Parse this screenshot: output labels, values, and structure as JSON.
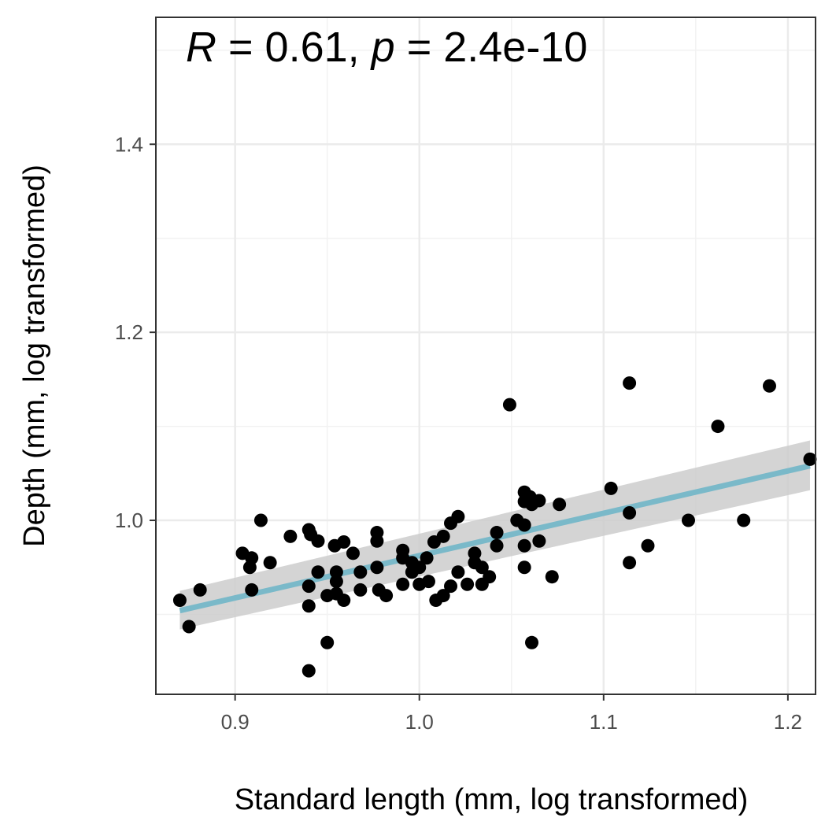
{
  "chart_data": {
    "type": "scatter",
    "xlabel": "Standard length (mm, log transformed)",
    "ylabel": "Depth (mm, log transformed)",
    "xlim": [
      0.857,
      1.215
    ],
    "ylim": [
      0.815,
      1.535
    ],
    "x_ticks": [
      0.9,
      1.0,
      1.1,
      1.2
    ],
    "x_tick_labels": [
      "0.9",
      "1.0",
      "1.1",
      "1.2"
    ],
    "y_ticks": [
      1.0,
      1.2,
      1.4
    ],
    "y_tick_labels": [
      "1.0",
      "1.2",
      "1.4"
    ],
    "grid": true,
    "annotation": {
      "r_symbol": "R",
      "r_text": " = 0.61, ",
      "p_symbol": "p",
      "p_text": " = 2.4e-10"
    },
    "point_color": "#000000",
    "fit_color": "#7ab9c9",
    "band_color": "#cccccc",
    "fit": {
      "x": [
        0.87,
        1.212
      ],
      "y": [
        0.904,
        1.058
      ],
      "ci_lower": [
        0.884,
        1.032
      ],
      "ci_upper": [
        0.925,
        1.085
      ]
    },
    "points": [
      {
        "x": 0.87,
        "y": 0.915
      },
      {
        "x": 0.875,
        "y": 0.887
      },
      {
        "x": 0.881,
        "y": 0.926
      },
      {
        "x": 0.904,
        "y": 0.965
      },
      {
        "x": 0.908,
        "y": 0.95
      },
      {
        "x": 0.909,
        "y": 0.96
      },
      {
        "x": 0.909,
        "y": 0.926
      },
      {
        "x": 0.914,
        "y": 1.0
      },
      {
        "x": 0.919,
        "y": 0.955
      },
      {
        "x": 0.93,
        "y": 0.983
      },
      {
        "x": 0.94,
        "y": 0.99
      },
      {
        "x": 0.941,
        "y": 0.985
      },
      {
        "x": 0.94,
        "y": 0.93
      },
      {
        "x": 0.94,
        "y": 0.909
      },
      {
        "x": 0.94,
        "y": 0.84
      },
      {
        "x": 0.945,
        "y": 0.945
      },
      {
        "x": 0.945,
        "y": 0.978
      },
      {
        "x": 0.95,
        "y": 0.87
      },
      {
        "x": 0.95,
        "y": 0.92
      },
      {
        "x": 0.954,
        "y": 0.973
      },
      {
        "x": 0.955,
        "y": 0.945
      },
      {
        "x": 0.955,
        "y": 0.935
      },
      {
        "x": 0.955,
        "y": 0.922
      },
      {
        "x": 0.959,
        "y": 0.977
      },
      {
        "x": 0.959,
        "y": 0.915
      },
      {
        "x": 0.964,
        "y": 0.965
      },
      {
        "x": 0.968,
        "y": 0.945
      },
      {
        "x": 0.968,
        "y": 0.926
      },
      {
        "x": 0.977,
        "y": 0.987
      },
      {
        "x": 0.977,
        "y": 0.978
      },
      {
        "x": 0.977,
        "y": 0.95
      },
      {
        "x": 0.978,
        "y": 0.926
      },
      {
        "x": 0.982,
        "y": 0.92
      },
      {
        "x": 0.991,
        "y": 0.968
      },
      {
        "x": 0.991,
        "y": 0.96
      },
      {
        "x": 0.991,
        "y": 0.932
      },
      {
        "x": 0.996,
        "y": 0.955
      },
      {
        "x": 0.996,
        "y": 0.945
      },
      {
        "x": 1.0,
        "y": 0.95
      },
      {
        "x": 1.0,
        "y": 0.932
      },
      {
        "x": 1.004,
        "y": 0.96
      },
      {
        "x": 1.005,
        "y": 0.935
      },
      {
        "x": 1.008,
        "y": 0.977
      },
      {
        "x": 1.009,
        "y": 0.915
      },
      {
        "x": 1.013,
        "y": 0.983
      },
      {
        "x": 1.013,
        "y": 0.92
      },
      {
        "x": 1.017,
        "y": 0.997
      },
      {
        "x": 1.017,
        "y": 0.93
      },
      {
        "x": 1.021,
        "y": 1.004
      },
      {
        "x": 1.021,
        "y": 0.945
      },
      {
        "x": 1.026,
        "y": 0.932
      },
      {
        "x": 1.03,
        "y": 0.965
      },
      {
        "x": 1.03,
        "y": 0.955
      },
      {
        "x": 1.034,
        "y": 0.95
      },
      {
        "x": 1.034,
        "y": 0.932
      },
      {
        "x": 1.038,
        "y": 0.94
      },
      {
        "x": 1.042,
        "y": 0.987
      },
      {
        "x": 1.042,
        "y": 0.973
      },
      {
        "x": 1.049,
        "y": 1.123
      },
      {
        "x": 1.053,
        "y": 1.0
      },
      {
        "x": 1.057,
        "y": 1.03
      },
      {
        "x": 1.057,
        "y": 1.02
      },
      {
        "x": 1.057,
        "y": 0.995
      },
      {
        "x": 1.057,
        "y": 0.973
      },
      {
        "x": 1.057,
        "y": 0.95
      },
      {
        "x": 1.06,
        "y": 1.025
      },
      {
        "x": 1.061,
        "y": 1.017
      },
      {
        "x": 1.061,
        "y": 0.87
      },
      {
        "x": 1.065,
        "y": 1.021
      },
      {
        "x": 1.065,
        "y": 0.978
      },
      {
        "x": 1.072,
        "y": 0.94
      },
      {
        "x": 1.076,
        "y": 1.017
      },
      {
        "x": 1.104,
        "y": 1.034
      },
      {
        "x": 1.114,
        "y": 1.146
      },
      {
        "x": 1.114,
        "y": 1.008
      },
      {
        "x": 1.114,
        "y": 0.955
      },
      {
        "x": 1.124,
        "y": 0.973
      },
      {
        "x": 1.146,
        "y": 1.0
      },
      {
        "x": 1.162,
        "y": 1.1
      },
      {
        "x": 1.176,
        "y": 1.0
      },
      {
        "x": 1.19,
        "y": 1.143
      },
      {
        "x": 1.212,
        "y": 1.065
      }
    ]
  }
}
